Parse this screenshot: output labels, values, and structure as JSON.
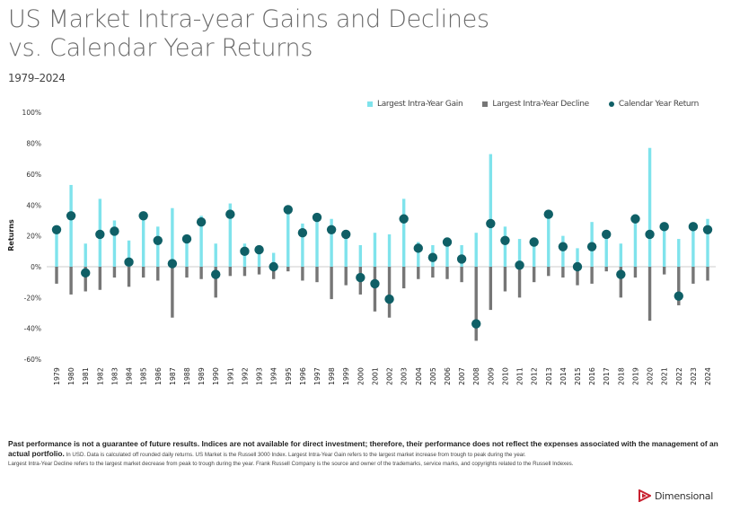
{
  "title_line1": "US Market Intra-year Gains and Declines",
  "title_line2": "vs. Calendar Year Returns",
  "subtitle": "1979–2024",
  "legend": {
    "gain": "Largest Intra-Year Gain",
    "decline": "Largest Intra-Year Decline",
    "return": "Calendar Year Return"
  },
  "colors": {
    "gain": "#7fe3ec",
    "decline": "#767676",
    "return": "#0f5f66",
    "zero_line": "#cccccc"
  },
  "chart_data": {
    "type": "bar",
    "title": "US Market Intra-year Gains and Declines vs. Calendar Year Returns",
    "subtitle": "1979–2024",
    "xlabel": "",
    "ylabel": "Returns",
    "ylim": [
      -60,
      100
    ],
    "yticks": [
      100,
      80,
      60,
      40,
      20,
      0,
      -20,
      -40,
      -60
    ],
    "ytick_labels": [
      "100%",
      "80%",
      "60%",
      "40%",
      "20%",
      "0%",
      "-20%",
      "-40%",
      "-60%"
    ],
    "grid": false,
    "legend_position": "top-right",
    "categories": [
      "1979",
      "1980",
      "1981",
      "1982",
      "1983",
      "1984",
      "1985",
      "1986",
      "1987",
      "1988",
      "1989",
      "1990",
      "1991",
      "1992",
      "1993",
      "1994",
      "1995",
      "1996",
      "1997",
      "1998",
      "1999",
      "2000",
      "2001",
      "2002",
      "2003",
      "2004",
      "2005",
      "2006",
      "2007",
      "2008",
      "2009",
      "2010",
      "2011",
      "2012",
      "2013",
      "2014",
      "2015",
      "2016",
      "2017",
      "2018",
      "2019",
      "2020",
      "2021",
      "2022",
      "2023",
      "2024"
    ],
    "series": [
      {
        "name": "Largest Intra-Year Gain",
        "kind": "bar",
        "values": [
          25,
          53,
          15,
          44,
          30,
          17,
          33,
          26,
          38,
          18,
          33,
          15,
          41,
          15,
          12,
          9,
          37,
          28,
          33,
          31,
          22,
          14,
          22,
          21,
          44,
          16,
          14,
          16,
          14,
          22,
          73,
          26,
          18,
          17,
          34,
          20,
          12,
          29,
          21,
          15,
          34,
          77,
          25,
          18,
          26,
          31
        ]
      },
      {
        "name": "Largest Intra-Year Decline",
        "kind": "bar",
        "values": [
          -11,
          -18,
          -16,
          -15,
          -7,
          -13,
          -7,
          -9,
          -33,
          -7,
          -8,
          -20,
          -6,
          -6,
          -5,
          -8,
          -3,
          -9,
          -10,
          -21,
          -12,
          -18,
          -29,
          -33,
          -14,
          -8,
          -7,
          -8,
          -10,
          -48,
          -28,
          -16,
          -20,
          -10,
          -6,
          -7,
          -12,
          -11,
          -3,
          -20,
          -7,
          -35,
          -5,
          -25,
          -11,
          -9
        ]
      },
      {
        "name": "Calendar Year Return",
        "kind": "dot",
        "values": [
          24,
          33,
          -4,
          21,
          23,
          3,
          33,
          17,
          2,
          18,
          29,
          -5,
          34,
          10,
          11,
          0,
          37,
          22,
          32,
          24,
          21,
          -7,
          -11,
          -21,
          31,
          12,
          6,
          16,
          5,
          -37,
          28,
          17,
          1,
          16,
          34,
          13,
          0,
          13,
          21,
          -5,
          31,
          21,
          26,
          -19,
          26,
          24
        ]
      }
    ]
  },
  "footer": {
    "bold_text": "Past performance is not a guarantee of future results. Indices are not available for direct investment; therefore, their performance does not reflect the expenses associated with the management of an actual portfolio.",
    "small_text_1": " In USD. Data is calculated off rounded daily returns. US Market is the Russell 3000 Index. Largest Intra-Year Gain refers to the largest market increase from trough to peak during the year.",
    "small_text_2": "Largest Intra-Year Decline refers to the largest market decrease from peak to trough during the year. Frank Russell Company is the source and owner of the trademarks, service marks, and copyrights related to the Russell Indexes."
  },
  "logo": {
    "text": "Dimensional",
    "icon": "dimensional-logo-icon",
    "color": "#c8202f"
  }
}
